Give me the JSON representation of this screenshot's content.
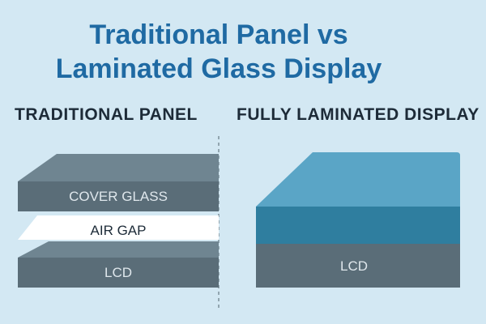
{
  "title_line1": "Traditional Panel vs",
  "title_line2": "Laminated Glass Display",
  "left": {
    "heading": "TRADITIONAL PANEL",
    "layers": {
      "cover_glass": "COVER GLASS",
      "air_gap": "AIR GAP",
      "lcd": "LCD"
    }
  },
  "right": {
    "heading": "FULLY LAMINATED DISPLAY",
    "layers": {
      "lcd": "LCD"
    }
  },
  "colors": {
    "background": "#d3e8f3",
    "title": "#1f6aa3",
    "slate_top": "#6f8591",
    "slate_face": "#5a6d78",
    "air_gap": "#ffffff",
    "laminate_top": "#5aa5c6",
    "laminate_face": "#2f7e9f"
  }
}
